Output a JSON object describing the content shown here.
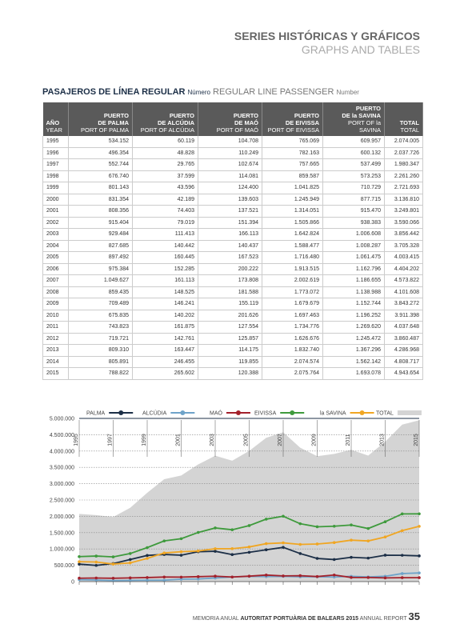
{
  "header": {
    "title": "SERIES HISTÓRICAS Y GRÁFICOS",
    "subtitle": "GRAPHS AND TABLES"
  },
  "table": {
    "title": "PASAJEROS DE LÍNEA REGULAR",
    "title_unit": "Número",
    "title_en": "REGULAR LINE PASSENGER",
    "title_en_unit": "Number",
    "columns": [
      {
        "lines": [
          "AÑO"
        ],
        "sub": "YEAR"
      },
      {
        "lines": [
          "PUERTO",
          "DE PALMA"
        ],
        "sub": "PORT OF PALMA"
      },
      {
        "lines": [
          "PUERTO",
          "DE ALCÚDIA"
        ],
        "sub": "PORT OF ALCÚDIA"
      },
      {
        "lines": [
          "PUERTO",
          "DE MAÓ"
        ],
        "sub": "PORT OF MAÓ"
      },
      {
        "lines": [
          "PUERTO",
          "DE EIVISSA"
        ],
        "sub": "PORT OF EIVISSA"
      },
      {
        "lines": [
          "PUERTO",
          "DE la SAVINA"
        ],
        "sub": "PORT OF la SAVINA"
      },
      {
        "lines": [
          "TOTAL"
        ],
        "sub": "TOTAL"
      }
    ],
    "rows": [
      [
        "1995",
        "534.152",
        "60.119",
        "104.708",
        "765.069",
        "609.957",
        "2.074.005"
      ],
      [
        "1996",
        "496.354",
        "48.828",
        "110.249",
        "782.163",
        "600.132",
        "2.037.726"
      ],
      [
        "1997",
        "552.744",
        "29.765",
        "102.674",
        "757.665",
        "537.499",
        "1.980.347"
      ],
      [
        "1998",
        "676.740",
        "37.599",
        "114.081",
        "859.587",
        "573.253",
        "2.261.260"
      ],
      [
        "1999",
        "801.143",
        "43.596",
        "124.400",
        "1.041.825",
        "710.729",
        "2.721.693"
      ],
      [
        "2000",
        "831.354",
        "42.189",
        "139.603",
        "1.245.949",
        "877.715",
        "3.136.810"
      ],
      [
        "2001",
        "808.356",
        "74.403",
        "137.521",
        "1.314.051",
        "915.470",
        "3.249.801"
      ],
      [
        "2002",
        "915.404",
        "79.019",
        "151.394",
        "1.505.866",
        "938.383",
        "3.590.066"
      ],
      [
        "2003",
        "929.484",
        "111.413",
        "166.113",
        "1.642.824",
        "1.006.608",
        "3.856.442"
      ],
      [
        "2004",
        "827.685",
        "140.442",
        "140.437",
        "1.588.477",
        "1.008.287",
        "3.705.328"
      ],
      [
        "2005",
        "897.492",
        "160.445",
        "167.523",
        "1.716.480",
        "1.061.475",
        "4.003.415"
      ],
      [
        "2006",
        "975.384",
        "152.285",
        "200.222",
        "1.913.515",
        "1.162.796",
        "4.404.202"
      ],
      [
        "2007",
        "1.049.627",
        "161.113",
        "173.808",
        "2.002.619",
        "1.186.655",
        "4.573.822"
      ],
      [
        "2008",
        "859.435",
        "148.525",
        "181.588",
        "1.773.072",
        "1.138.988",
        "4.101.608"
      ],
      [
        "2009",
        "709.489",
        "146.241",
        "155.119",
        "1.679.679",
        "1.152.744",
        "3.843.272"
      ],
      [
        "2010",
        "675.835",
        "140.202",
        "201.626",
        "1.697.463",
        "1.196.252",
        "3.911.398"
      ],
      [
        "2011",
        "743.823",
        "161.875",
        "127.554",
        "1.734.776",
        "1.269.620",
        "4.037.648"
      ],
      [
        "2012",
        "719.721",
        "142.761",
        "125.857",
        "1.626.676",
        "1.245.472",
        "3.860.487"
      ],
      [
        "2013",
        "809.310",
        "163.447",
        "114.175",
        "1.832.740",
        "1.367.296",
        "4.286.968"
      ],
      [
        "2014",
        "805.891",
        "246.455",
        "119.855",
        "2.074.574",
        "1.562.142",
        "4.808.717"
      ],
      [
        "2015",
        "788.822",
        "265.602",
        "120.388",
        "2.075.764",
        "1.693.078",
        "4.943.654"
      ]
    ]
  },
  "chart": {
    "type": "line",
    "x": [
      1995,
      1996,
      1997,
      1998,
      1999,
      2000,
      2001,
      2002,
      2003,
      2004,
      2005,
      2006,
      2007,
      2008,
      2009,
      2010,
      2011,
      2012,
      2013,
      2014,
      2015
    ],
    "xlim": [
      1995,
      2015
    ],
    "xticks": [
      1995,
      1997,
      1999,
      2001,
      2003,
      2005,
      2007,
      2009,
      2011,
      2013,
      2015
    ],
    "ylim": [
      0,
      5000000
    ],
    "yticks": [
      0,
      {
        "value": 500000,
        "label": "500.000"
      },
      {
        "value": 1000000,
        "label": "1.000.000"
      },
      {
        "value": 1500000,
        "label": "1.500.000"
      },
      {
        "value": 2000000,
        "label": "2.000.000"
      },
      {
        "value": 2500000,
        "label": "2.500.000"
      },
      {
        "value": 3000000,
        "label": "3.000.000"
      },
      {
        "value": 3500000,
        "label": "3.500.000"
      },
      {
        "value": 4000000,
        "label": "4.000.000"
      },
      {
        "value": 4500000,
        "label": "4.500.000"
      },
      {
        "value": 5000000,
        "label": "5.000.000"
      }
    ],
    "grid": true,
    "series": [
      {
        "name": "PALMA",
        "color": "#1c2f47",
        "type": "line",
        "values": [
          534152,
          496354,
          552744,
          676740,
          801143,
          831354,
          808356,
          915404,
          929484,
          827685,
          897492,
          975384,
          1049627,
          859435,
          709489,
          675835,
          743823,
          719721,
          809310,
          805891,
          788822
        ]
      },
      {
        "name": "ALCÚDIA",
        "color": "#6ea3c9",
        "type": "line",
        "values": [
          60119,
          48828,
          29765,
          37599,
          43596,
          42189,
          74403,
          79019,
          111413,
          140442,
          160445,
          152285,
          161113,
          148525,
          146241,
          140202,
          161875,
          142761,
          163447,
          246455,
          265602
        ]
      },
      {
        "name": "MAÓ",
        "color": "#a3212b",
        "type": "line",
        "values": [
          104708,
          110249,
          102674,
          114081,
          124400,
          139603,
          137521,
          151394,
          166113,
          140437,
          167523,
          200222,
          173808,
          181588,
          155119,
          201626,
          127554,
          125857,
          114175,
          119855,
          120388
        ]
      },
      {
        "name": "EIVISSA",
        "color": "#3e9a3c",
        "type": "line",
        "values": [
          765069,
          782163,
          757665,
          859587,
          1041825,
          1245949,
          1314051,
          1505866,
          1642824,
          1588477,
          1716480,
          1913515,
          2002619,
          1773072,
          1679679,
          1697463,
          1734776,
          1626676,
          1832740,
          2074574,
          2075764
        ]
      },
      {
        "name": "la SAVINA",
        "color": "#f0a623",
        "type": "line",
        "values": [
          609957,
          600132,
          537499,
          573253,
          710729,
          877715,
          915470,
          938383,
          1006608,
          1008287,
          1061475,
          1162796,
          1186655,
          1138988,
          1152744,
          1196252,
          1269620,
          1245472,
          1367296,
          1562142,
          1693078
        ]
      },
      {
        "name": "TOTAL",
        "color": "#d4d4d4",
        "type": "area",
        "values": [
          2074005,
          2037726,
          1980347,
          2261260,
          2721693,
          3136810,
          3249801,
          3590066,
          3856442,
          3705328,
          4003415,
          4404202,
          4573822,
          4101608,
          3843272,
          3911398,
          4037648,
          3860487,
          4286968,
          4808717,
          4943654
        ]
      }
    ]
  },
  "footer": {
    "prefix": "MEMORIA ANUAL",
    "org": "AUTORITAT PORTUÀRIA DE BALEARS 2015",
    "suffix": "ANNUAL REPORT",
    "page": "35"
  }
}
